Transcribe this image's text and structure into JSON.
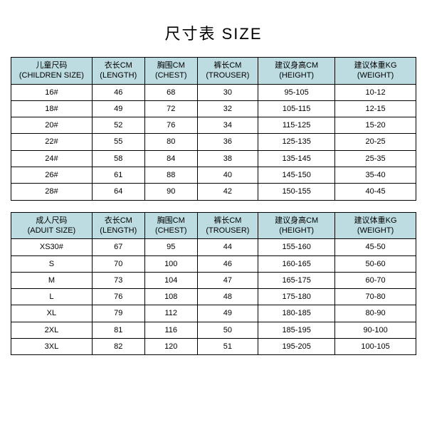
{
  "title": "尺寸表 SIZE",
  "children_table": {
    "type": "table",
    "header_bg": "#bddce2",
    "border_color": "#000000",
    "columns": [
      {
        "cn": "儿童尺码",
        "en": "(CHILDREN SIZE)"
      },
      {
        "cn": "衣长CM",
        "en": "(LENGTH)"
      },
      {
        "cn": "胸围CM",
        "en": "(CHEST)"
      },
      {
        "cn": "裤长CM",
        "en": "(TROUSER)"
      },
      {
        "cn": "建议身高CM",
        "en": "(HEIGHT)"
      },
      {
        "cn": "建议体重KG",
        "en": "(WEIGHT)"
      }
    ],
    "rows": [
      [
        "16#",
        "46",
        "68",
        "30",
        "95-105",
        "10-12"
      ],
      [
        "18#",
        "49",
        "72",
        "32",
        "105-115",
        "12-15"
      ],
      [
        "20#",
        "52",
        "76",
        "34",
        "115-125",
        "15-20"
      ],
      [
        "22#",
        "55",
        "80",
        "36",
        "125-135",
        "20-25"
      ],
      [
        "24#",
        "58",
        "84",
        "38",
        "135-145",
        "25-35"
      ],
      [
        "26#",
        "61",
        "88",
        "40",
        "145-150",
        "35-40"
      ],
      [
        "28#",
        "64",
        "90",
        "42",
        "150-155",
        "40-45"
      ]
    ]
  },
  "adult_table": {
    "type": "table",
    "header_bg": "#bddce2",
    "border_color": "#000000",
    "columns": [
      {
        "cn": "成人尺码",
        "en": "(ADUIT SIZE)"
      },
      {
        "cn": "衣长CM",
        "en": "(LENGTH)"
      },
      {
        "cn": "胸围CM",
        "en": "(CHEST)"
      },
      {
        "cn": "裤长CM",
        "en": "(TROUSER)"
      },
      {
        "cn": "建议身高CM",
        "en": "(HEIGHT)"
      },
      {
        "cn": "建议体重KG",
        "en": "(WEIGHT)"
      }
    ],
    "rows": [
      [
        "XS30#",
        "67",
        "95",
        "44",
        "155-160",
        "45-50"
      ],
      [
        "S",
        "70",
        "100",
        "46",
        "160-165",
        "50-60"
      ],
      [
        "M",
        "73",
        "104",
        "47",
        "165-175",
        "60-70"
      ],
      [
        "L",
        "76",
        "108",
        "48",
        "175-180",
        "70-80"
      ],
      [
        "XL",
        "79",
        "112",
        "49",
        "180-185",
        "80-90"
      ],
      [
        "2XL",
        "81",
        "116",
        "50",
        "185-195",
        "90-100"
      ],
      [
        "3XL",
        "82",
        "120",
        "51",
        "195-205",
        "100-105"
      ]
    ]
  }
}
